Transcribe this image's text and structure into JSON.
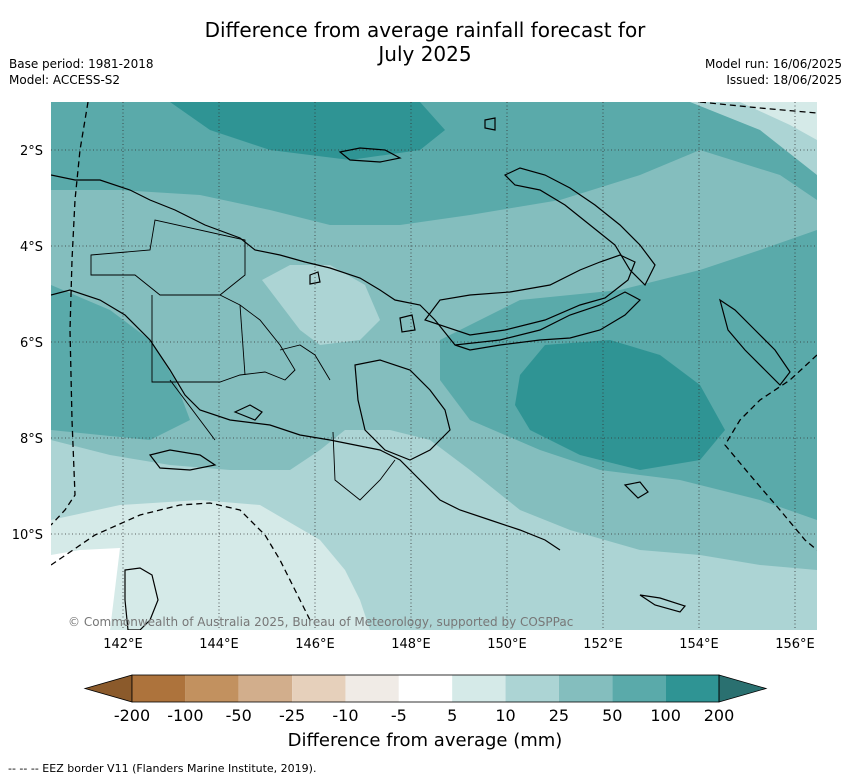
{
  "title_line1": "Difference from average rainfall forecast for",
  "title_line2": "July 2025",
  "meta": {
    "base_period": "Base period: 1981-2018",
    "model": "Model: ACCESS-S2",
    "model_run": "Model run: 16/06/2025",
    "issued": "Issued: 18/06/2025"
  },
  "lat_ticks": [
    "2°S",
    "4°S",
    "6°S",
    "8°S",
    "10°S"
  ],
  "lon_ticks": [
    "142°E",
    "144°E",
    "146°E",
    "148°E",
    "150°E",
    "152°E",
    "154°E",
    "156°E"
  ],
  "copyright": "© Commonwealth of Australia 2025, Bureau of Meteorology, supported by COSPPac",
  "colorbar": {
    "title": "Difference from average (mm)",
    "labels": [
      "-200",
      "-100",
      "-50",
      "-25",
      "-10",
      "-5",
      "5",
      "10",
      "25",
      "50",
      "100",
      "200"
    ],
    "colors": [
      "#8b5a2b",
      "#ad733c",
      "#c2915f",
      "#d2ae8c",
      "#e6d0bb",
      "#f0ebe6",
      "#ffffff",
      "#d5eae8",
      "#acd4d4",
      "#84bebe",
      "#5aaaaa",
      "#2f9494",
      "#2a7070"
    ]
  },
  "footnote": "-- -- -- EEZ border V11 (Flanders Marine Institute, 2019)."
}
